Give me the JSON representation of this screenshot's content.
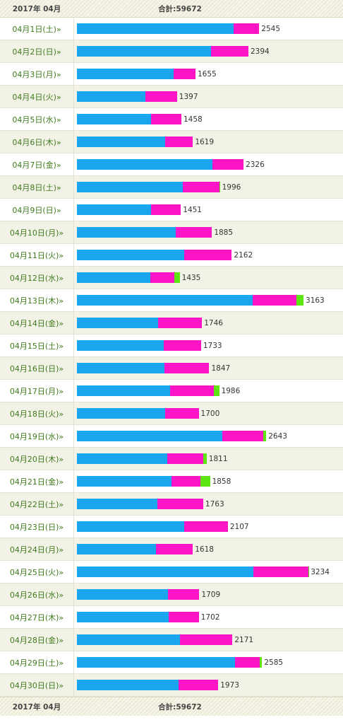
{
  "header": {
    "month": "2017年 04月",
    "total": "合計:59672"
  },
  "footer": {
    "month": "2017年 04月",
    "total": "合計:59672"
  },
  "colors": {
    "series1": "#1aa6ee",
    "series2": "#ff14c8",
    "series3": "#5ee610"
  },
  "chart_data": {
    "type": "bar",
    "orientation": "horizontal",
    "stacked": true,
    "xlim": [
      0,
      3350
    ],
    "categories": [
      "04月1日(土)»",
      "04月2日(日)»",
      "04月3日(月)»",
      "04月4日(火)»",
      "04月5日(水)»",
      "04月6日(木)»",
      "04月7日(金)»",
      "04月8日(土)»",
      "04月9日(日)»",
      "04月10日(月)»",
      "04月11日(火)»",
      "04月12日(水)»",
      "04月13日(木)»",
      "04月14日(金)»",
      "04月15日(土)»",
      "04月16日(日)»",
      "04月17日(月)»",
      "04月18日(火)»",
      "04月19日(水)»",
      "04月20日(木)»",
      "04月21日(金)»",
      "04月22日(土)»",
      "04月23日(日)»",
      "04月24日(月)»",
      "04月25日(火)»",
      "04月26日(水)»",
      "04月27日(木)»",
      "04月28日(金)»",
      "04月29日(土)»",
      "04月30日(日)»"
    ],
    "totals": [
      2545,
      2394,
      1655,
      1397,
      1458,
      1619,
      2326,
      1996,
      1451,
      1885,
      2162,
      1435,
      3163,
      1746,
      1733,
      1847,
      1986,
      1700,
      2643,
      1811,
      1858,
      1763,
      2107,
      1618,
      3234,
      1709,
      1702,
      2171,
      2585,
      1973
    ],
    "series": [
      {
        "values": [
          2190,
          1870,
          1350,
          960,
          1030,
          1230,
          1890,
          1480,
          1030,
          1380,
          1500,
          1020,
          2450,
          1130,
          1210,
          1220,
          1300,
          1230,
          2030,
          1260,
          1320,
          1120,
          1500,
          1100,
          2460,
          1270,
          1280,
          1440,
          2210,
          1420
        ]
      },
      {
        "values": [
          355,
          524,
          305,
          437,
          428,
          389,
          436,
          506,
          421,
          505,
          662,
          340,
          613,
          616,
          523,
          627,
          611,
          470,
          570,
          501,
          400,
          643,
          607,
          518,
          770,
          439,
          422,
          731,
          345,
          553
        ]
      },
      {
        "values": [
          0,
          0,
          0,
          0,
          0,
          0,
          0,
          10,
          0,
          0,
          0,
          75,
          100,
          0,
          0,
          0,
          75,
          0,
          43,
          50,
          138,
          0,
          0,
          0,
          4,
          0,
          0,
          0,
          30,
          0
        ]
      }
    ]
  }
}
